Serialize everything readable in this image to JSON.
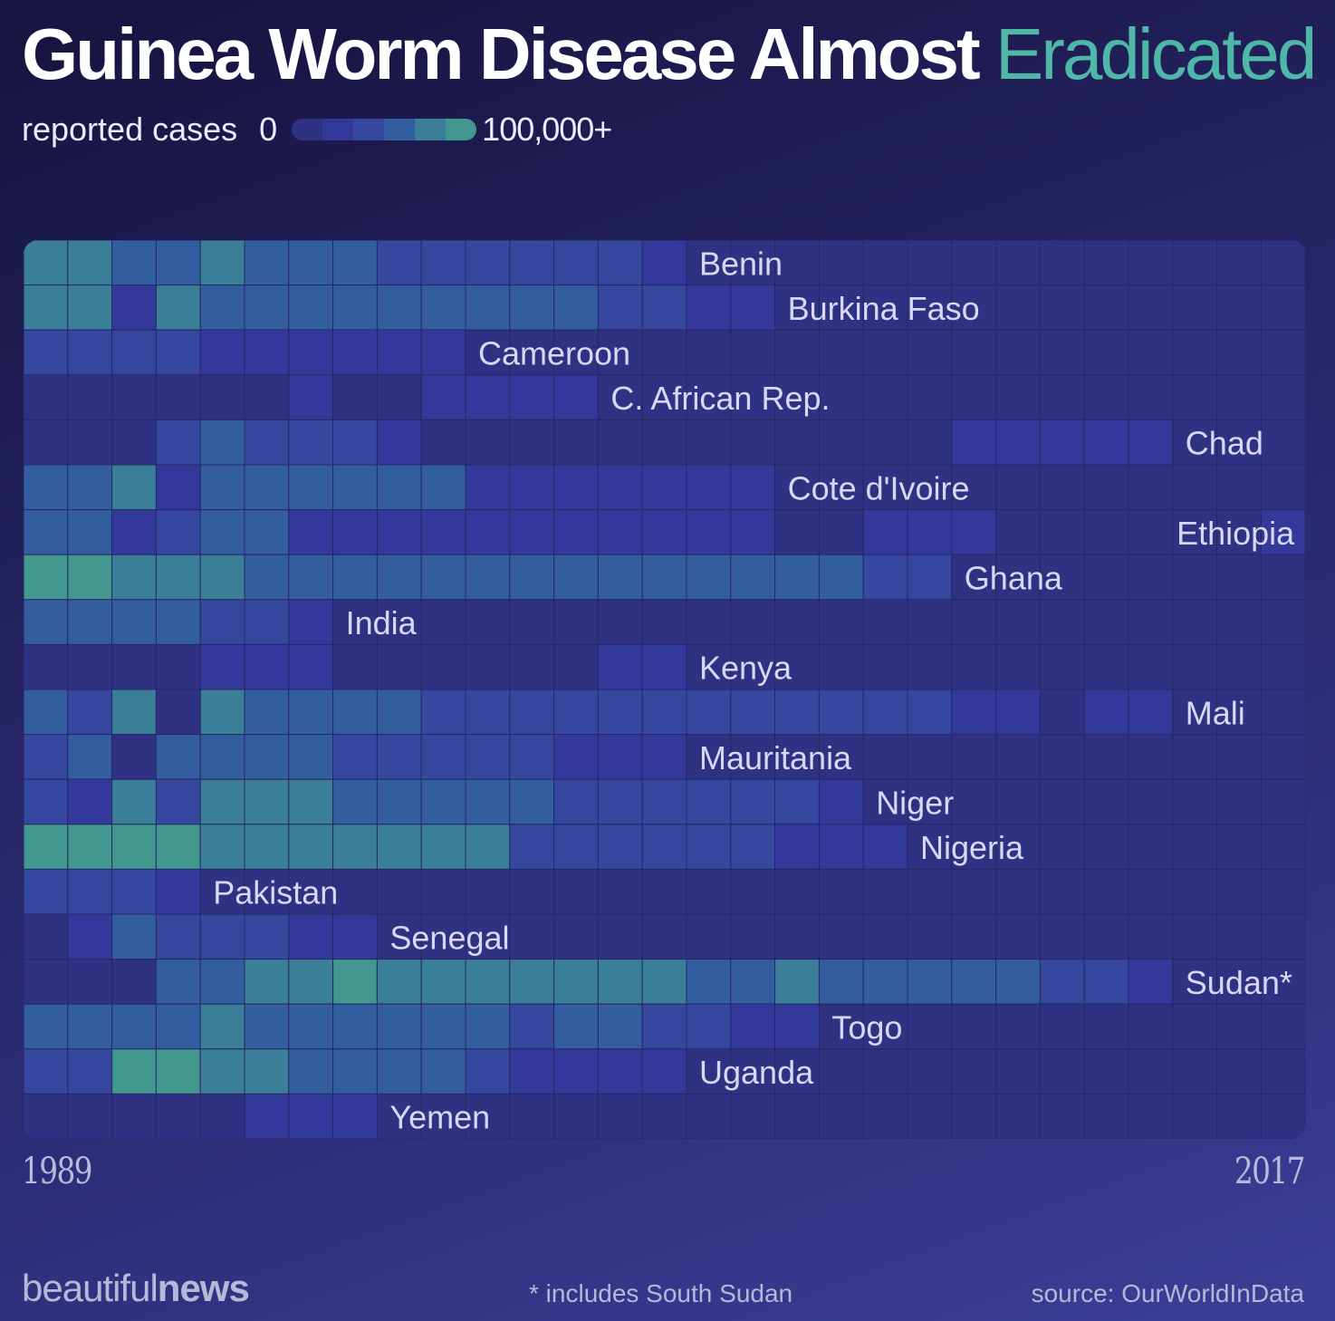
{
  "header": {
    "title_main": "Guinea Worm Disease Almost",
    "title_accent": "Eradicated"
  },
  "legend": {
    "label": "reported cases",
    "min": "0",
    "max": "100,000+",
    "colors": [
      "#2f3182",
      "#33399a",
      "#36479f",
      "#325e9f",
      "#3a7e97",
      "#42988f"
    ]
  },
  "axis": {
    "start_year": "1989",
    "end_year": "2017"
  },
  "footer": {
    "brand_light": "beautiful",
    "brand_bold": "news",
    "footnote": "* includes South Sudan",
    "source": "source: OurWorldInData"
  },
  "chart_data": {
    "type": "heatmap",
    "x_range": [
      1989,
      2017
    ],
    "value_scale": "0 to 5 (0 = no cases, 5 = 100,000+ cases)",
    "colors": {
      "background": "#2d2f78",
      "levels": [
        "#2f3182",
        "#33399a",
        "#36479f",
        "#325e9f",
        "#3a7e97",
        "#42988f",
        "#4fb7a8"
      ]
    },
    "rows": [
      {
        "country": "Benin",
        "label": "Benin",
        "values": [
          4,
          4,
          3,
          3,
          4,
          3,
          3,
          3,
          2,
          2,
          2,
          2,
          2,
          2,
          1,
          0,
          0,
          0,
          0,
          0,
          0,
          0,
          0,
          0,
          0,
          0,
          0,
          0,
          0
        ]
      },
      {
        "country": "Burkina Faso",
        "label": "Burkina Faso",
        "values": [
          4,
          4,
          1,
          4,
          3,
          3,
          3,
          3,
          3,
          3,
          3,
          3,
          3,
          2,
          2,
          1,
          1,
          0,
          0,
          0,
          0,
          0,
          0,
          0,
          0,
          0,
          0,
          0,
          0
        ]
      },
      {
        "country": "Cameroon",
        "label": "Cameroon",
        "values": [
          2,
          2,
          2,
          2,
          1,
          1,
          1,
          1,
          1,
          1,
          0,
          0,
          0,
          0,
          0,
          0,
          0,
          0,
          0,
          0,
          0,
          0,
          0,
          0,
          0,
          0,
          0,
          0,
          0
        ]
      },
      {
        "country": "C. African Rep.",
        "label": "C. African Rep.",
        "values": [
          0,
          0,
          0,
          0,
          0,
          0,
          1,
          0,
          0,
          1,
          1,
          1,
          1,
          0,
          0,
          0,
          0,
          0,
          0,
          0,
          0,
          0,
          0,
          0,
          0,
          0,
          0,
          0,
          0
        ]
      },
      {
        "country": "Chad",
        "label": "Chad",
        "values": [
          0,
          0,
          0,
          2,
          3,
          2,
          2,
          2,
          1,
          0,
          0,
          0,
          0,
          0,
          0,
          0,
          0,
          0,
          0,
          0,
          0,
          1,
          1,
          1,
          1,
          1,
          0,
          0,
          0
        ]
      },
      {
        "country": "Cote d'Ivoire",
        "label": "Cote d'Ivoire",
        "values": [
          3,
          3,
          4,
          1,
          3,
          3,
          3,
          3,
          3,
          3,
          1,
          1,
          1,
          1,
          1,
          1,
          1,
          0,
          0,
          0,
          0,
          0,
          0,
          0,
          0,
          0,
          0,
          0,
          0
        ]
      },
      {
        "country": "Ethiopia",
        "label": "Ethiopia",
        "values": [
          3,
          3,
          1,
          2,
          3,
          3,
          1,
          1,
          1,
          1,
          1,
          1,
          1,
          1,
          1,
          1,
          1,
          0,
          0,
          1,
          1,
          1,
          0,
          0,
          0,
          0,
          0,
          0,
          1
        ]
      },
      {
        "country": "Ghana",
        "label": "Ghana",
        "values": [
          5,
          5,
          4,
          4,
          4,
          3,
          3,
          3,
          3,
          3,
          3,
          3,
          3,
          3,
          3,
          3,
          3,
          3,
          3,
          2,
          2,
          0,
          0,
          0,
          0,
          0,
          0,
          0,
          0
        ]
      },
      {
        "country": "India",
        "label": "India",
        "values": [
          3,
          3,
          3,
          3,
          2,
          2,
          1,
          0,
          0,
          0,
          0,
          0,
          0,
          0,
          0,
          0,
          0,
          0,
          0,
          0,
          0,
          0,
          0,
          0,
          0,
          0,
          0,
          0,
          0
        ]
      },
      {
        "country": "Kenya",
        "label": "Kenya",
        "values": [
          0,
          0,
          0,
          0,
          1,
          1,
          1,
          0,
          0,
          0,
          0,
          0,
          0,
          1,
          1,
          0,
          0,
          0,
          0,
          0,
          0,
          0,
          0,
          0,
          0,
          0,
          0,
          0,
          0
        ]
      },
      {
        "country": "Mali",
        "label": "Mali",
        "values": [
          3,
          2,
          4,
          0,
          4,
          3,
          3,
          3,
          3,
          2,
          2,
          2,
          2,
          2,
          2,
          2,
          2,
          2,
          2,
          2,
          2,
          1,
          1,
          0,
          1,
          1,
          0,
          0,
          0
        ]
      },
      {
        "country": "Mauritania",
        "label": "Mauritania",
        "values": [
          2,
          3,
          0,
          3,
          3,
          3,
          3,
          2,
          2,
          2,
          2,
          2,
          1,
          1,
          1,
          0,
          0,
          0,
          0,
          0,
          0,
          0,
          0,
          0,
          0,
          0,
          0,
          0,
          0
        ]
      },
      {
        "country": "Niger",
        "label": "Niger",
        "values": [
          2,
          1,
          4,
          2,
          4,
          4,
          4,
          3,
          3,
          3,
          3,
          3,
          2,
          2,
          2,
          2,
          2,
          2,
          1,
          0,
          0,
          0,
          0,
          0,
          0,
          0,
          0,
          0,
          0
        ]
      },
      {
        "country": "Nigeria",
        "label": "Nigeria",
        "values": [
          5,
          5,
          5,
          5,
          4,
          4,
          4,
          4,
          4,
          4,
          4,
          2,
          2,
          2,
          2,
          2,
          2,
          1,
          1,
          1,
          0,
          0,
          0,
          0,
          0,
          0,
          0,
          0,
          0
        ]
      },
      {
        "country": "Pakistan",
        "label": "Pakistan",
        "values": [
          2,
          2,
          2,
          1,
          0,
          0,
          0,
          0,
          0,
          0,
          0,
          0,
          0,
          0,
          0,
          0,
          0,
          0,
          0,
          0,
          0,
          0,
          0,
          0,
          0,
          0,
          0,
          0,
          0
        ]
      },
      {
        "country": "Senegal",
        "label": "Senegal",
        "values": [
          0,
          1,
          3,
          2,
          2,
          2,
          1,
          1,
          0,
          0,
          0,
          0,
          0,
          0,
          0,
          0,
          0,
          0,
          0,
          0,
          0,
          0,
          0,
          0,
          0,
          0,
          0,
          0,
          0
        ]
      },
      {
        "country": "Sudan",
        "label": "Sudan*",
        "values": [
          0,
          0,
          0,
          3,
          3,
          4,
          4,
          5,
          4,
          4,
          4,
          4,
          4,
          4,
          4,
          3,
          3,
          4,
          3,
          3,
          3,
          3,
          3,
          2,
          2,
          1,
          0,
          0,
          0
        ]
      },
      {
        "country": "Togo",
        "label": "Togo",
        "values": [
          3,
          3,
          3,
          3,
          4,
          3,
          3,
          3,
          3,
          3,
          3,
          2,
          3,
          3,
          2,
          2,
          1,
          1,
          0,
          0,
          0,
          0,
          0,
          0,
          0,
          0,
          0,
          0,
          0
        ]
      },
      {
        "country": "Uganda",
        "label": "Uganda",
        "values": [
          2,
          2,
          5,
          5,
          4,
          4,
          3,
          3,
          3,
          3,
          2,
          1,
          1,
          1,
          1,
          0,
          0,
          0,
          0,
          0,
          0,
          0,
          0,
          0,
          0,
          0,
          0,
          0,
          0
        ]
      },
      {
        "country": "Yemen",
        "label": "Yemen",
        "values": [
          0,
          0,
          0,
          0,
          0,
          1,
          1,
          1,
          0,
          0,
          0,
          0,
          0,
          0,
          0,
          0,
          0,
          0,
          0,
          0,
          0,
          0,
          0,
          0,
          0,
          0,
          0,
          0,
          0
        ]
      }
    ]
  }
}
